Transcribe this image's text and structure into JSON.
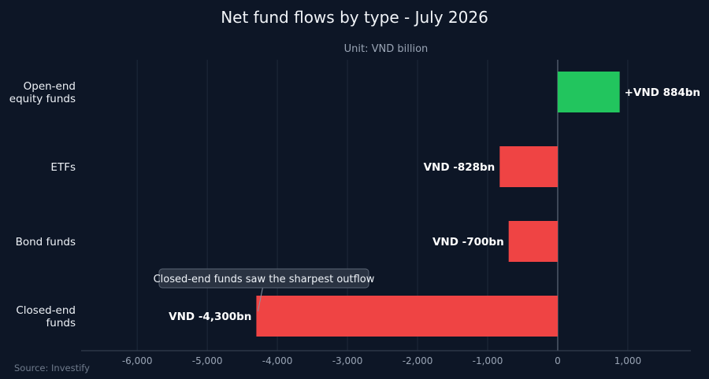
{
  "chart_data": {
    "type": "bar",
    "orientation": "horizontal",
    "title": "Net fund flows by type - July 2026",
    "subtitle": "Unit: VND billion",
    "categories": [
      [
        "Open-end",
        "equity funds"
      ],
      [
        "ETFs"
      ],
      [
        "Bond funds"
      ],
      [
        "Closed-end",
        "funds"
      ]
    ],
    "values": [
      884,
      -828,
      -700,
      -4300
    ],
    "data_labels": [
      "+VND 884bn",
      "VND -828bn",
      "VND -700bn",
      "VND -4,300bn"
    ],
    "xlim": [
      -6800,
      1900
    ],
    "xticks": [
      -6000,
      -5000,
      -4000,
      -3000,
      -2000,
      -1000,
      0,
      1000
    ],
    "xtick_labels": [
      "-6,000",
      "-5,000",
      "-4,000",
      "-3,000",
      "-2,000",
      "-1,000",
      "0",
      "1,000"
    ],
    "grid": "vertical",
    "colors": {
      "positive": "#22c55e",
      "negative": "#ef4444",
      "background": "#0d1626"
    },
    "annotation": {
      "text": "Closed-end funds saw the sharpest outflow",
      "category_index": 3
    },
    "source": "Source: Investify"
  }
}
